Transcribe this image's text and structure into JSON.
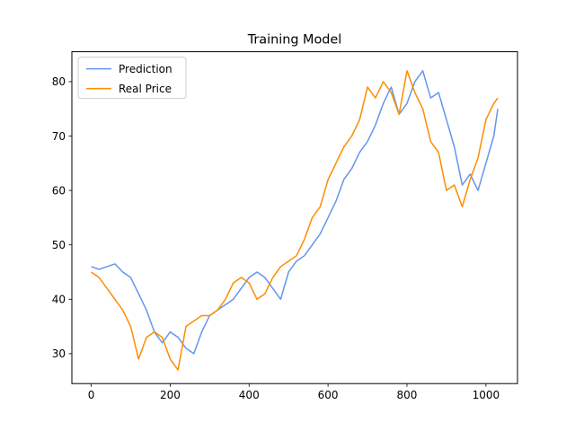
{
  "chart_data": {
    "type": "line",
    "title": "Training Model",
    "xlabel": "",
    "ylabel": "",
    "xlim": [
      -49,
      1080
    ],
    "ylim": [
      24.5,
      85.5
    ],
    "xticks": [
      0,
      200,
      400,
      600,
      800,
      1000
    ],
    "yticks": [
      30,
      40,
      50,
      60,
      70,
      80
    ],
    "grid": false,
    "legend_position": "top-left",
    "series": [
      {
        "name": "Prediction",
        "color": "#6495ed",
        "x": [
          0,
          20,
          40,
          60,
          80,
          100,
          120,
          140,
          160,
          180,
          200,
          220,
          240,
          260,
          280,
          300,
          320,
          340,
          360,
          380,
          400,
          420,
          440,
          460,
          480,
          500,
          520,
          540,
          560,
          580,
          600,
          620,
          640,
          660,
          680,
          700,
          720,
          740,
          760,
          780,
          800,
          820,
          840,
          860,
          880,
          900,
          920,
          940,
          960,
          980,
          1000,
          1020,
          1030
        ],
        "y": [
          46,
          45.5,
          46,
          46.5,
          45,
          44,
          41,
          38,
          34,
          32,
          34,
          33,
          31,
          30,
          34,
          37,
          38,
          39,
          40,
          42,
          44,
          45,
          44,
          42,
          40,
          45,
          47,
          48,
          50,
          52,
          55,
          58,
          62,
          64,
          67,
          69,
          72,
          76,
          79,
          74,
          76,
          80,
          82,
          77,
          78,
          73,
          68,
          61,
          63,
          60,
          65,
          70,
          75
        ]
      },
      {
        "name": "Real Price",
        "color": "#ff8c00",
        "x": [
          0,
          20,
          40,
          60,
          80,
          100,
          120,
          140,
          160,
          180,
          200,
          220,
          240,
          260,
          280,
          300,
          320,
          340,
          360,
          380,
          400,
          420,
          440,
          460,
          480,
          500,
          520,
          540,
          560,
          580,
          600,
          620,
          640,
          660,
          680,
          700,
          720,
          740,
          760,
          780,
          800,
          820,
          840,
          860,
          880,
          900,
          920,
          940,
          960,
          980,
          1000,
          1020,
          1030
        ],
        "y": [
          45,
          44,
          42,
          40,
          38,
          35,
          29,
          33,
          34,
          33,
          29,
          27,
          35,
          36,
          37,
          37,
          38,
          40,
          43,
          44,
          43,
          40,
          41,
          44,
          46,
          47,
          48,
          51,
          55,
          57,
          62,
          65,
          68,
          70,
          73,
          79,
          77,
          80,
          78,
          74,
          82,
          78,
          75,
          69,
          67,
          60,
          61,
          57,
          62,
          66,
          73,
          76,
          77
        ]
      }
    ]
  }
}
